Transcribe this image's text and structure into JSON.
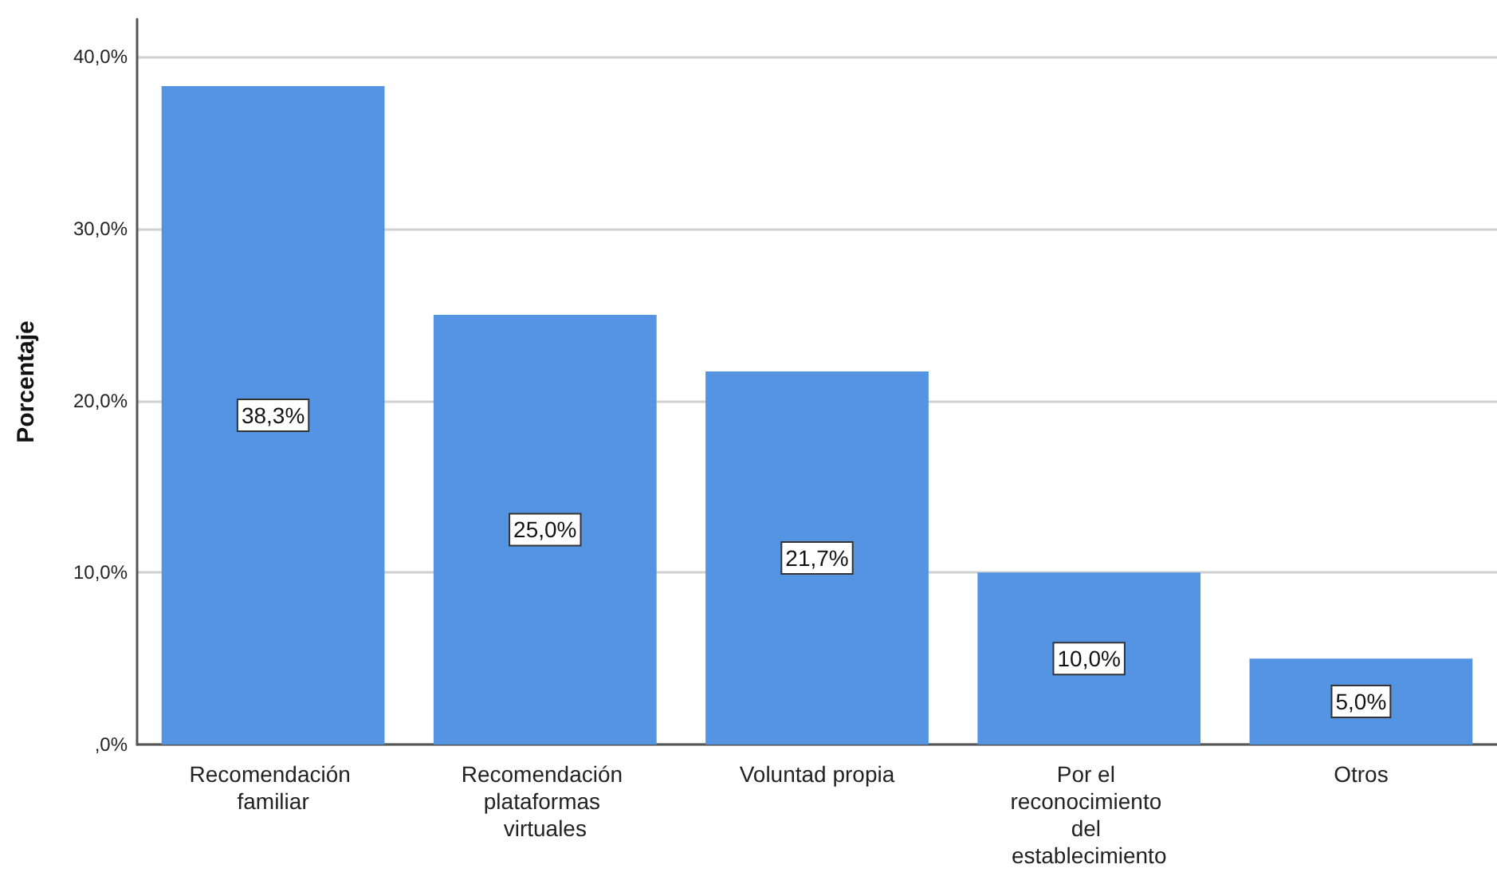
{
  "chart_data": {
    "type": "bar",
    "ylabel": "Porcentaje",
    "categories": [
      "Recomendación familiar",
      "Recomendación plataformas virtuales",
      "Voluntad propia",
      "Por el reconocimiento del establecimiento",
      "Otros"
    ],
    "values": [
      38.3,
      25.0,
      21.7,
      10.0,
      5.0
    ],
    "color": "#5594e2",
    "value_labels": [
      "38,3%",
      "25,0%",
      "21,7%",
      "10,0%",
      "5,0%"
    ],
    "ylim": [
      0,
      42.2
    ],
    "yticks": [
      {
        "value": 0,
        "label": ",0%"
      },
      {
        "value": 10,
        "label": "10,0%"
      },
      {
        "value": 20,
        "label": "20,0%"
      },
      {
        "value": 30,
        "label": "30,0%"
      },
      {
        "value": 40,
        "label": "40,0%"
      }
    ],
    "grid": "y"
  }
}
